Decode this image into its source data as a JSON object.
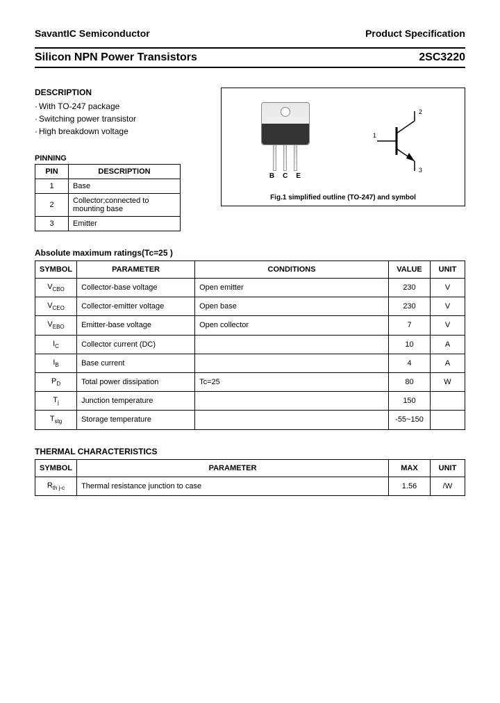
{
  "header": {
    "company": "SavantIC Semiconductor",
    "spec": "Product Specification",
    "product_title": "Silicon NPN Power Transistors",
    "part_number": "2SC3220"
  },
  "description": {
    "heading": "DESCRIPTION",
    "items": [
      "With TO-247 package",
      "Switching power transistor",
      "High breakdown voltage"
    ]
  },
  "pinning": {
    "heading": "PINNING",
    "columns": [
      "PIN",
      "DESCRIPTION"
    ],
    "rows": [
      [
        "1",
        "Base"
      ],
      [
        "2",
        "Collector;connected to mounting base"
      ],
      [
        "3",
        "Emitter"
      ]
    ]
  },
  "figure": {
    "lead_labels": [
      "B",
      "C",
      "E"
    ],
    "pin_nums": [
      "1",
      "2",
      "3"
    ],
    "caption": "Fig.1 simplified outline (TO-247) and symbol"
  },
  "abs_ratings": {
    "heading": "Absolute maximum ratings(Tc=25 )",
    "columns": [
      "SYMBOL",
      "PARAMETER",
      "CONDITIONS",
      "VALUE",
      "UNIT"
    ],
    "rows": [
      {
        "sym": "V",
        "sub": "CBO",
        "param": "Collector-base voltage",
        "cond": "Open emitter",
        "val": "230",
        "unit": "V"
      },
      {
        "sym": "V",
        "sub": "CEO",
        "param": "Collector-emitter voltage",
        "cond": "Open base",
        "val": "230",
        "unit": "V"
      },
      {
        "sym": "V",
        "sub": "EBO",
        "param": "Emitter-base voltage",
        "cond": "Open collector",
        "val": "7",
        "unit": "V"
      },
      {
        "sym": "I",
        "sub": "C",
        "param": "Collector current (DC)",
        "cond": "",
        "val": "10",
        "unit": "A"
      },
      {
        "sym": "I",
        "sub": "B",
        "param": "Base current",
        "cond": "",
        "val": "4",
        "unit": "A"
      },
      {
        "sym": "P",
        "sub": "D",
        "param": "Total power dissipation",
        "cond": "Tc=25",
        "val": "80",
        "unit": "W"
      },
      {
        "sym": "T",
        "sub": "j",
        "param": "Junction temperature",
        "cond": "",
        "val": "150",
        "unit": ""
      },
      {
        "sym": "T",
        "sub": "stg",
        "param": "Storage temperature",
        "cond": "",
        "val": "-55~150",
        "unit": ""
      }
    ]
  },
  "thermal": {
    "heading": "THERMAL CHARACTERISTICS",
    "columns": [
      "SYMBOL",
      "PARAMETER",
      "MAX",
      "UNIT"
    ],
    "rows": [
      {
        "sym": "R",
        "sub": "th j-c",
        "param": "Thermal resistance junction to case",
        "val": "1.56",
        "unit": "/W"
      }
    ]
  }
}
